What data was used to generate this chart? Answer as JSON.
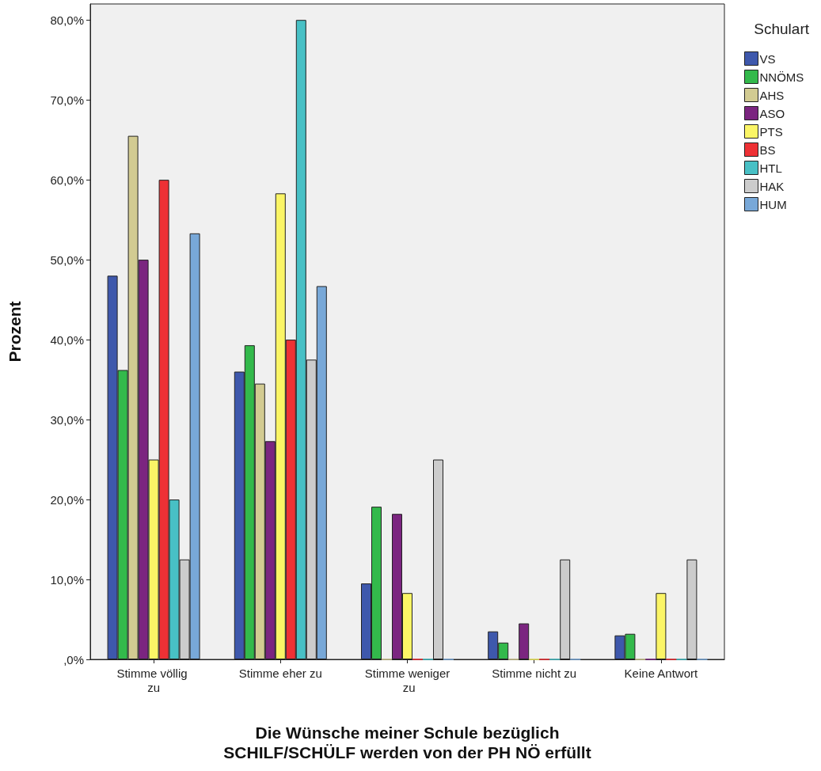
{
  "chart_data": {
    "type": "bar",
    "xlabel": "Die Wünsche meiner Schule bezüglich\nSCHILF/SCHÜLF werden von der PH NÖ erfüllt",
    "ylabel": "Prozent",
    "legend_title": "Schulart",
    "legend": "top right",
    "grid": false,
    "categories": [
      "Stimme völlig zu",
      "Stimme eher zu",
      "Stimme weniger zu",
      "Stimme nicht zu",
      "Keine Antwort"
    ],
    "ylim": [
      0,
      82
    ],
    "yticks": [
      {
        "value": 0,
        "label": ",0%"
      },
      {
        "value": 10,
        "label": "10,0%"
      },
      {
        "value": 20,
        "label": "20,0%"
      },
      {
        "value": 30,
        "label": "30,0%"
      },
      {
        "value": 40,
        "label": "40,0%"
      },
      {
        "value": 50,
        "label": "50,0%"
      },
      {
        "value": 60,
        "label": "60,0%"
      },
      {
        "value": 70,
        "label": "70,0%"
      },
      {
        "value": 80,
        "label": "80,0%"
      }
    ],
    "series": [
      {
        "name": "VS",
        "color": "#3e58ac",
        "values": [
          48,
          36,
          9.5,
          3.5,
          3
        ]
      },
      {
        "name": "NNÖMS",
        "color": "#33b94b",
        "values": [
          36.2,
          39.3,
          19.1,
          2.1,
          3.2
        ]
      },
      {
        "name": "AHS",
        "color": "#d2cb92",
        "values": [
          65.5,
          34.5,
          0,
          0,
          0
        ]
      },
      {
        "name": "ASO",
        "color": "#7b2580",
        "values": [
          50,
          27.3,
          18.2,
          4.5,
          0
        ]
      },
      {
        "name": "PTS",
        "color": "#fbf566",
        "values": [
          25,
          58.3,
          8.3,
          0,
          8.3
        ]
      },
      {
        "name": "BS",
        "color": "#ee3135",
        "values": [
          60,
          40,
          0,
          0,
          0
        ]
      },
      {
        "name": "HTL",
        "color": "#48c0c5",
        "values": [
          20,
          80,
          0,
          0,
          0
        ]
      },
      {
        "name": "HAK",
        "color": "#cccccc",
        "values": [
          12.5,
          37.5,
          25,
          12.5,
          12.5
        ]
      },
      {
        "name": "HUM",
        "color": "#78a8d8",
        "values": [
          53.3,
          46.7,
          0,
          0,
          0
        ]
      }
    ]
  }
}
